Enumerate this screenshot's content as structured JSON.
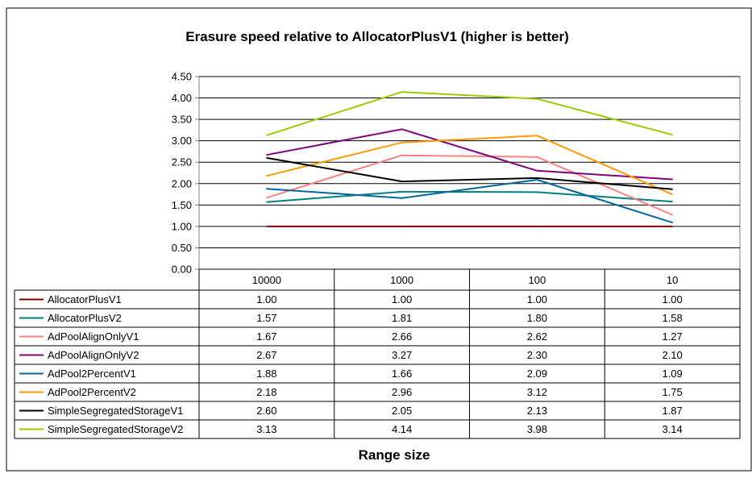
{
  "chart_data": {
    "type": "line",
    "title": "Erasure speed relative to AllocatorPlusV1 (higher is better)",
    "xlabel": "Range size",
    "ylabel": "",
    "categories": [
      "10000",
      "1000",
      "100",
      "10"
    ],
    "ylim": [
      0,
      4.5
    ],
    "yticks": [
      "0.00",
      "0.50",
      "1.00",
      "1.50",
      "2.00",
      "2.50",
      "3.00",
      "3.50",
      "4.00",
      "4.50"
    ],
    "grid": true,
    "legend": "data-table",
    "series": [
      {
        "name": "AllocatorPlusV1",
        "color": "#800000",
        "values": [
          1.0,
          1.0,
          1.0,
          1.0
        ],
        "labels": [
          "1.00",
          "1.00",
          "1.00",
          "1.00"
        ]
      },
      {
        "name": "AllocatorPlusV2",
        "color": "#008080",
        "values": [
          1.57,
          1.81,
          1.8,
          1.58
        ],
        "labels": [
          "1.57",
          "1.81",
          "1.80",
          "1.58"
        ]
      },
      {
        "name": "AdPoolAlignOnlyV1",
        "color": "#ff8080",
        "values": [
          1.67,
          2.66,
          2.62,
          1.27
        ],
        "labels": [
          "1.67",
          "2.66",
          "2.62",
          "1.27"
        ]
      },
      {
        "name": "AdPoolAlignOnlyV2",
        "color": "#800080",
        "values": [
          2.67,
          3.27,
          2.3,
          2.1
        ],
        "labels": [
          "2.67",
          "3.27",
          "2.30",
          "2.10"
        ]
      },
      {
        "name": "AdPool2PercentV1",
        "color": "#0066a0",
        "values": [
          1.88,
          1.66,
          2.09,
          1.09
        ],
        "labels": [
          "1.88",
          "1.66",
          "2.09",
          "1.09"
        ]
      },
      {
        "name": "AdPool2PercentV2",
        "color": "#ff9900",
        "values": [
          2.18,
          2.96,
          3.12,
          1.75
        ],
        "labels": [
          "2.18",
          "2.96",
          "3.12",
          "1.75"
        ]
      },
      {
        "name": "SimpleSegregatedStorageV1",
        "color": "#000000",
        "values": [
          2.6,
          2.05,
          2.13,
          1.87
        ],
        "labels": [
          "2.60",
          "2.05",
          "2.13",
          "1.87"
        ]
      },
      {
        "name": "SimpleSegregatedStorageV2",
        "color": "#99cc00",
        "values": [
          3.13,
          4.14,
          3.98,
          3.14
        ],
        "labels": [
          "3.13",
          "4.14",
          "3.98",
          "3.14"
        ]
      }
    ]
  }
}
